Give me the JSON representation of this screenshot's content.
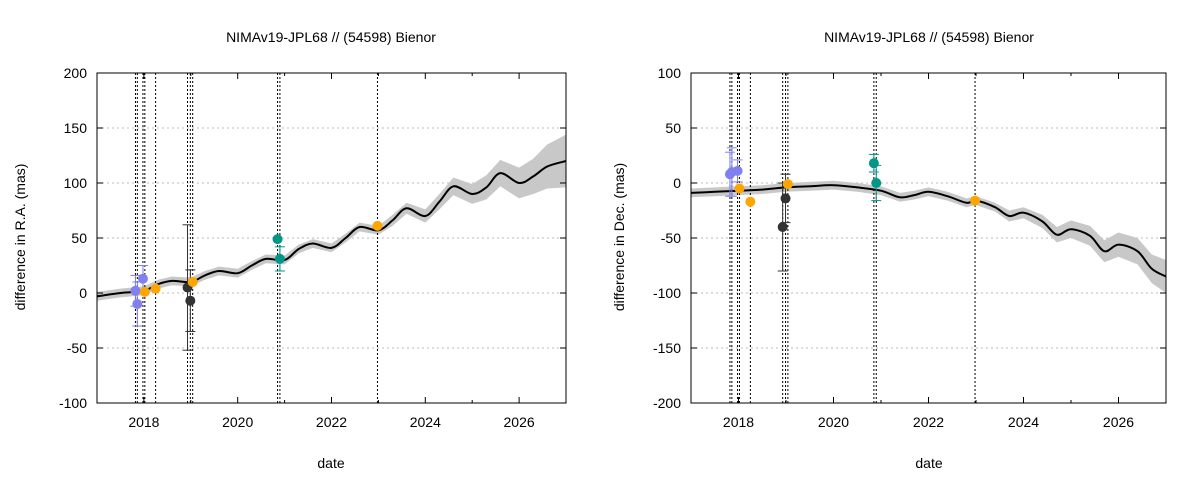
{
  "chart_data": [
    {
      "type": "scatter",
      "title": "NIMAv19-JPL68 // (54598) Bienor",
      "xlabel": "date",
      "ylabel": "difference in R.A. (mas)",
      "xlim": [
        2017.0,
        2027.0
      ],
      "ylim": [
        -100,
        200
      ],
      "xticks": [
        2018,
        2020,
        2022,
        2024,
        2026
      ],
      "yticks": [
        -100,
        -50,
        0,
        50,
        100,
        150,
        200
      ],
      "grid": "horizontal dotted",
      "legend": "none",
      "colors": {
        "model": "#000000",
        "band": "#c8c8c8",
        "blue": "#8080ee",
        "orange": "#ffa500",
        "dark": "#333333",
        "teal": "#009688",
        "vline": "#000000"
      },
      "model_curve": {
        "x": [
          2017.0,
          2017.5,
          2018.0,
          2018.3,
          2018.6,
          2019.0,
          2019.3,
          2019.6,
          2020.0,
          2020.3,
          2020.6,
          2021.0,
          2021.3,
          2021.6,
          2022.0,
          2022.3,
          2022.6,
          2023.0,
          2023.3,
          2023.6,
          2024.0,
          2024.3,
          2024.6,
          2025.0,
          2025.3,
          2025.6,
          2026.0,
          2026.3,
          2026.6,
          2027.0
        ],
        "y": [
          -3,
          0,
          2,
          8,
          11,
          10,
          16,
          20,
          18,
          25,
          31,
          30,
          40,
          45,
          41,
          50,
          60,
          57,
          66,
          77,
          70,
          83,
          97,
          90,
          96,
          109,
          100,
          106,
          115,
          120
        ],
        "band_halfwidth": [
          4,
          4,
          4,
          4,
          4,
          4,
          4,
          4,
          4,
          4,
          4,
          4,
          4,
          4,
          4,
          4,
          4,
          4,
          5,
          5,
          6,
          7,
          8,
          9,
          11,
          12,
          14,
          16,
          20,
          24
        ]
      },
      "vlines": [
        2017.82,
        2017.86,
        2017.98,
        2018.02,
        2018.25,
        2018.93,
        2018.99,
        2019.04,
        2020.85,
        2020.9,
        2022.98
      ],
      "points": [
        {
          "x": 2017.82,
          "y": 2,
          "err": 14,
          "color": "blue"
        },
        {
          "x": 2017.86,
          "y": -10,
          "err": 20,
          "color": "blue"
        },
        {
          "x": 2017.98,
          "y": 13,
          "err": 12,
          "color": "blue"
        },
        {
          "x": 2018.02,
          "y": 1,
          "err": 0,
          "color": "orange"
        },
        {
          "x": 2018.25,
          "y": 4,
          "err": 0,
          "color": "orange"
        },
        {
          "x": 2018.93,
          "y": 5,
          "err": 57,
          "color": "dark"
        },
        {
          "x": 2018.99,
          "y": -7,
          "err": 28,
          "color": "dark"
        },
        {
          "x": 2019.04,
          "y": 10,
          "err": 0,
          "color": "orange"
        },
        {
          "x": 2020.85,
          "y": 49,
          "err": 0,
          "color": "teal"
        },
        {
          "x": 2020.9,
          "y": 31,
          "err": 11,
          "color": "teal"
        },
        {
          "x": 2022.98,
          "y": 61,
          "err": 0,
          "color": "orange"
        }
      ]
    },
    {
      "type": "scatter",
      "title": "NIMAv19-JPL68 // (54598) Bienor",
      "xlabel": "date",
      "ylabel": "difference in Dec. (mas)",
      "xlim": [
        2017.0,
        2027.0
      ],
      "ylim": [
        -200,
        100
      ],
      "xticks": [
        2018,
        2020,
        2022,
        2024,
        2026
      ],
      "yticks": [
        -200,
        -150,
        -100,
        -50,
        0,
        50,
        100
      ],
      "grid": "horizontal dotted",
      "legend": "none",
      "colors": {
        "model": "#000000",
        "band": "#c8c8c8",
        "blue": "#8080ee",
        "orange": "#ffa500",
        "dark": "#333333",
        "teal": "#009688",
        "vline": "#000000"
      },
      "model_curve": {
        "x": [
          2017.0,
          2017.5,
          2018.0,
          2018.5,
          2019.0,
          2019.5,
          2020.0,
          2020.5,
          2021.0,
          2021.4,
          2021.7,
          2022.0,
          2022.4,
          2022.8,
          2023.0,
          2023.4,
          2023.7,
          2024.0,
          2024.4,
          2024.7,
          2025.0,
          2025.4,
          2025.7,
          2026.0,
          2026.4,
          2026.7,
          2027.0
        ],
        "y": [
          -9,
          -8,
          -7,
          -6,
          -4,
          -3,
          -2,
          -4,
          -7,
          -13,
          -11,
          -8,
          -12,
          -18,
          -16,
          -22,
          -30,
          -27,
          -35,
          -47,
          -42,
          -48,
          -62,
          -56,
          -62,
          -78,
          -85
        ],
        "band_halfwidth": [
          4,
          4,
          4,
          4,
          4,
          4,
          4,
          4,
          4,
          4,
          4,
          4,
          4,
          4,
          4,
          4,
          5,
          5,
          6,
          7,
          8,
          9,
          10,
          11,
          12,
          13,
          15
        ]
      },
      "vlines": [
        2017.82,
        2017.86,
        2017.98,
        2018.02,
        2018.25,
        2018.93,
        2018.99,
        2019.04,
        2020.85,
        2020.9,
        2022.98
      ],
      "points": [
        {
          "x": 2017.82,
          "y": 8,
          "err": 20,
          "color": "blue"
        },
        {
          "x": 2017.86,
          "y": 10,
          "err": 22,
          "color": "blue"
        },
        {
          "x": 2017.98,
          "y": 11,
          "err": 10,
          "color": "blue"
        },
        {
          "x": 2018.02,
          "y": -5,
          "err": 0,
          "color": "orange"
        },
        {
          "x": 2018.25,
          "y": -17,
          "err": 0,
          "color": "orange"
        },
        {
          "x": 2018.93,
          "y": -40,
          "err": 40,
          "color": "dark"
        },
        {
          "x": 2018.99,
          "y": -14,
          "err": 22,
          "color": "dark"
        },
        {
          "x": 2019.04,
          "y": -1,
          "err": 0,
          "color": "orange"
        },
        {
          "x": 2020.85,
          "y": 18,
          "err": 8,
          "color": "teal"
        },
        {
          "x": 2020.9,
          "y": 0,
          "err": 16,
          "color": "teal"
        },
        {
          "x": 2022.98,
          "y": -16,
          "err": 0,
          "color": "orange"
        }
      ]
    }
  ]
}
